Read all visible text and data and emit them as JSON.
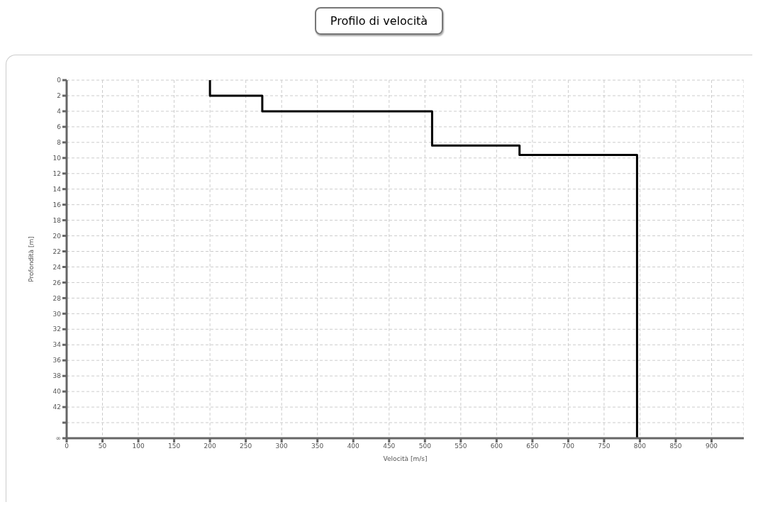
{
  "chart_data": {
    "type": "line",
    "title": "Profilo di velocità",
    "xlabel": "Velocità [m/s]",
    "ylabel": "Profondità [m]",
    "x": [
      200,
      200,
      273,
      273,
      510,
      510,
      632,
      632,
      796,
      796
    ],
    "series": [
      {
        "color": "#000000",
        "values": [
          0,
          2,
          2,
          4,
          4,
          8.4,
          8.4,
          9.6,
          9.6,
          46
        ]
      }
    ],
    "xlim": [
      0,
      945
    ],
    "xticks": [
      0,
      50,
      100,
      150,
      200,
      250,
      300,
      350,
      400,
      450,
      500,
      550,
      600,
      650,
      700,
      750,
      800,
      850,
      900
    ],
    "ylim": [
      46,
      0
    ],
    "yticks": [
      0,
      2,
      4,
      6,
      8,
      10,
      12,
      14,
      16,
      18,
      20,
      22,
      24,
      26,
      28,
      30,
      32,
      34,
      36,
      38,
      40,
      42,
      {
        "value": 44,
        "label": null
      },
      {
        "value": 46,
        "label": "∞"
      }
    ],
    "grid": true,
    "marker": "none",
    "line_style": "solid"
  }
}
